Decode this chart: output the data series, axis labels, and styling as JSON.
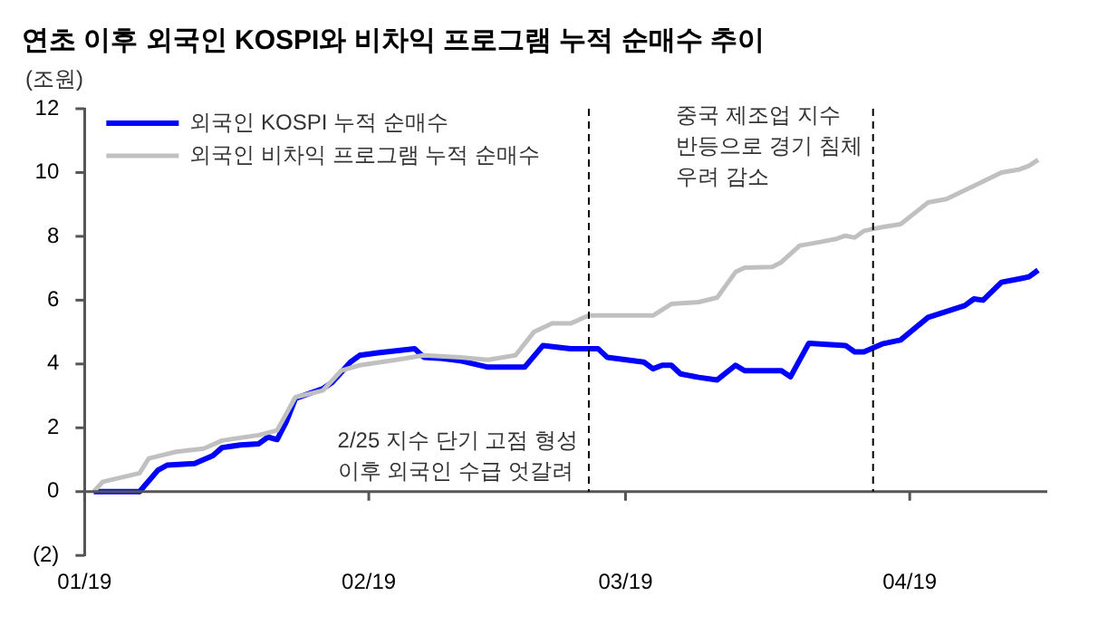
{
  "chart_data": {
    "type": "line",
    "title": "연초 이후 외국인 KOSPI와 비차익 프로그램 누적 순매수 추이",
    "ylabel": "(조원)",
    "xlim": [
      "2019-01-01",
      "2019-04-16"
    ],
    "xticks": [
      {
        "value": "2019-01-01",
        "label": "01/19"
      },
      {
        "value": "2019-02-01",
        "label": "02/19"
      },
      {
        "value": "2019-03-01",
        "label": "03/19"
      },
      {
        "value": "2019-04-01",
        "label": "04/19"
      }
    ],
    "ylim": [
      -2,
      12
    ],
    "yticks": [
      {
        "value": -2,
        "label": "(2)"
      },
      0,
      2,
      4,
      6,
      8,
      10,
      12
    ],
    "grid": false,
    "legend": "top left",
    "marker": "none",
    "line_style": "solid",
    "series": [
      {
        "name": "외국인 KOSPI 누적 순매수",
        "color": "#0000ff",
        "x": [
          "2019-01-02",
          "2019-01-03",
          "2019-01-07",
          "2019-01-09",
          "2019-01-10",
          "2019-01-13",
          "2019-01-15",
          "2019-01-16",
          "2019-01-18",
          "2019-01-20",
          "2019-01-21",
          "2019-01-22",
          "2019-01-23",
          "2019-01-24",
          "2019-01-27",
          "2019-01-28",
          "2019-01-30",
          "2019-01-31",
          "2019-02-02",
          "2019-02-06",
          "2019-02-07",
          "2019-02-09",
          "2019-02-11",
          "2019-02-14",
          "2019-02-18",
          "2019-02-20",
          "2019-02-23",
          "2019-02-26",
          "2019-02-27",
          "2019-03-03",
          "2019-03-04",
          "2019-03-05",
          "2019-03-06",
          "2019-03-07",
          "2019-03-09",
          "2019-03-11",
          "2019-03-13",
          "2019-03-14",
          "2019-03-18",
          "2019-03-19",
          "2019-03-21",
          "2019-03-25",
          "2019-03-26",
          "2019-03-27",
          "2019-03-29",
          "2019-03-31",
          "2019-04-03",
          "2019-04-07",
          "2019-04-08",
          "2019-04-09",
          "2019-04-11",
          "2019-04-13",
          "2019-04-14",
          "2019-04-15"
        ],
        "values": [
          0,
          0,
          0,
          0.67,
          0.83,
          0.88,
          1.13,
          1.38,
          1.46,
          1.5,
          1.71,
          1.63,
          2.19,
          2.92,
          3.23,
          3.42,
          4.06,
          4.27,
          4.35,
          4.48,
          4.21,
          4.17,
          4.1,
          3.9,
          3.9,
          4.58,
          4.48,
          4.48,
          4.21,
          4.06,
          3.85,
          3.96,
          3.96,
          3.69,
          3.58,
          3.5,
          3.96,
          3.79,
          3.79,
          3.6,
          4.65,
          4.58,
          4.38,
          4.38,
          4.63,
          4.75,
          5.46,
          5.83,
          6.04,
          6.0,
          6.56,
          6.67,
          6.73,
          6.94
        ]
      },
      {
        "name": "외국인 비차익 프로그램 누적 순매수",
        "color": "#c0c0c0",
        "x": [
          "2019-01-02",
          "2019-01-03",
          "2019-01-07",
          "2019-01-08",
          "2019-01-11",
          "2019-01-14",
          "2019-01-16",
          "2019-01-20",
          "2019-01-22",
          "2019-01-24",
          "2019-01-27",
          "2019-01-29",
          "2019-01-31",
          "2019-02-04",
          "2019-02-07",
          "2019-02-11",
          "2019-02-14",
          "2019-02-17",
          "2019-02-19",
          "2019-02-21",
          "2019-02-23",
          "2019-02-25",
          "2019-03-04",
          "2019-03-06",
          "2019-03-09",
          "2019-03-11",
          "2019-03-13",
          "2019-03-14",
          "2019-03-17",
          "2019-03-18",
          "2019-03-20",
          "2019-03-22",
          "2019-03-24",
          "2019-03-25",
          "2019-03-26",
          "2019-03-27",
          "2019-03-29",
          "2019-03-31",
          "2019-04-03",
          "2019-04-05",
          "2019-04-08",
          "2019-04-11",
          "2019-04-13",
          "2019-04-14",
          "2019-04-15"
        ],
        "values": [
          0,
          0.31,
          0.58,
          1.04,
          1.25,
          1.35,
          1.6,
          1.77,
          1.92,
          2.96,
          3.17,
          3.79,
          3.96,
          4.13,
          4.27,
          4.21,
          4.13,
          4.27,
          5.0,
          5.27,
          5.27,
          5.52,
          5.52,
          5.88,
          5.94,
          6.08,
          6.88,
          7.02,
          7.04,
          7.19,
          7.71,
          7.81,
          7.92,
          8.02,
          7.96,
          8.17,
          8.29,
          8.38,
          9.06,
          9.17,
          9.58,
          10.0,
          10.1,
          10.21,
          10.4
        ]
      }
    ],
    "ref_lines": [
      {
        "axis": "y",
        "value": 0,
        "line_style": "solid",
        "color": "#555555"
      },
      {
        "axis": "x",
        "value": "2019-02-25",
        "line_style": "dashed",
        "color": "#000000"
      },
      {
        "axis": "x",
        "value": "2019-03-28",
        "line_style": "dashed",
        "color": "#000000"
      }
    ],
    "annotations": [
      {
        "text": "2/25 지수 단기 고점 형성\n이후 외국인 수급 엇갈려",
        "x": "2019-02-25",
        "y": 1.9
      },
      {
        "text": "중국 제조업 지수\n반등으로 경기 침체\n우려 감소",
        "x": "2019-03-28",
        "y": 12.1
      }
    ]
  }
}
